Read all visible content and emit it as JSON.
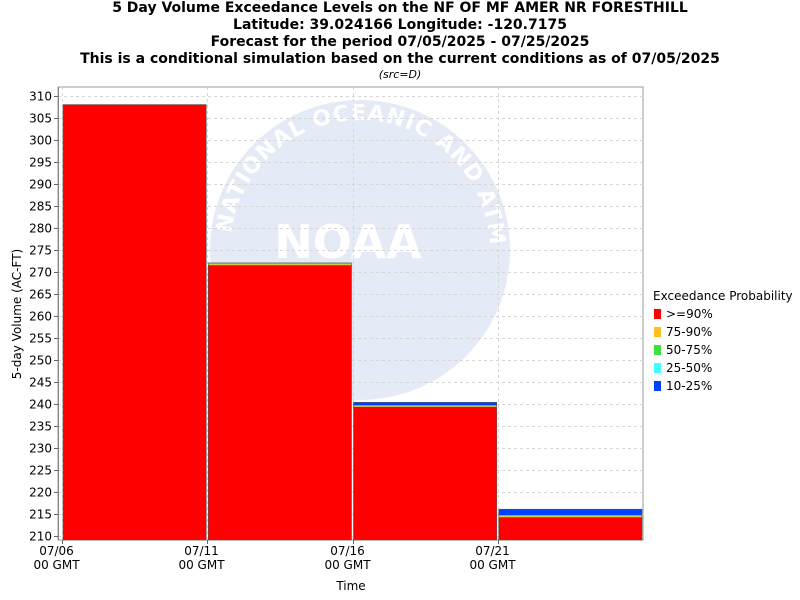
{
  "titles": [
    "5 Day Volume Exceedance Levels on the NF OF MF AMER NR FORESTHILL",
    "Latitude: 39.024166 Longitude: -120.7175",
    "Forecast for the period 07/05/2025 - 07/25/2025",
    "This is a conditional simulation based on the current conditions as of 07/05/2025"
  ],
  "source_note": "(src=D)",
  "watermark": {
    "logo_text": "NOAA",
    "ring_text": "NATIONAL OCEANIC AND ATMOSPHERIC ADMINISTRATION"
  },
  "chart_data": {
    "type": "bar",
    "stacked": true,
    "xlabel": "Time",
    "ylabel": "5-day Volume (AC-FT)",
    "ylim": [
      209,
      312
    ],
    "yticks": [
      210,
      215,
      220,
      225,
      230,
      235,
      240,
      245,
      250,
      255,
      260,
      265,
      270,
      275,
      280,
      285,
      290,
      295,
      300,
      305,
      310
    ],
    "grid": true,
    "x_ticks": [
      {
        "line1": "07/06",
        "line2": "00 GMT",
        "pos": 0
      },
      {
        "line1": "07/11",
        "line2": "00 GMT",
        "pos": 1
      },
      {
        "line1": "07/16",
        "line2": "00 GMT",
        "pos": 2
      },
      {
        "line1": "07/21",
        "line2": "00 GMT",
        "pos": 3
      }
    ],
    "x_range": [
      0,
      4
    ],
    "bars": [
      {
        "start": 0,
        "end": 1,
        "levels": [
          308.0,
          308.0,
          308.0,
          308.0,
          308.0
        ]
      },
      {
        "start": 1,
        "end": 2,
        "levels": [
          271.5,
          271.7,
          271.8,
          271.9,
          272.0
        ]
      },
      {
        "start": 2,
        "end": 3,
        "levels": [
          239.3,
          239.4,
          239.5,
          239.6,
          240.3
        ]
      },
      {
        "start": 3,
        "end": 4,
        "levels": [
          214.2,
          214.4,
          214.5,
          214.6,
          216.0
        ]
      }
    ],
    "legend_title": "Exceedance Probability",
    "legend_position": "right",
    "series": [
      {
        "name": ">=90%",
        "color": "#ff0000"
      },
      {
        "name": "75-90%",
        "color": "#ffc020"
      },
      {
        "name": "50-75%",
        "color": "#40e040"
      },
      {
        "name": "25-50%",
        "color": "#40ffff"
      },
      {
        "name": "10-25%",
        "color": "#0040ff"
      }
    ]
  }
}
